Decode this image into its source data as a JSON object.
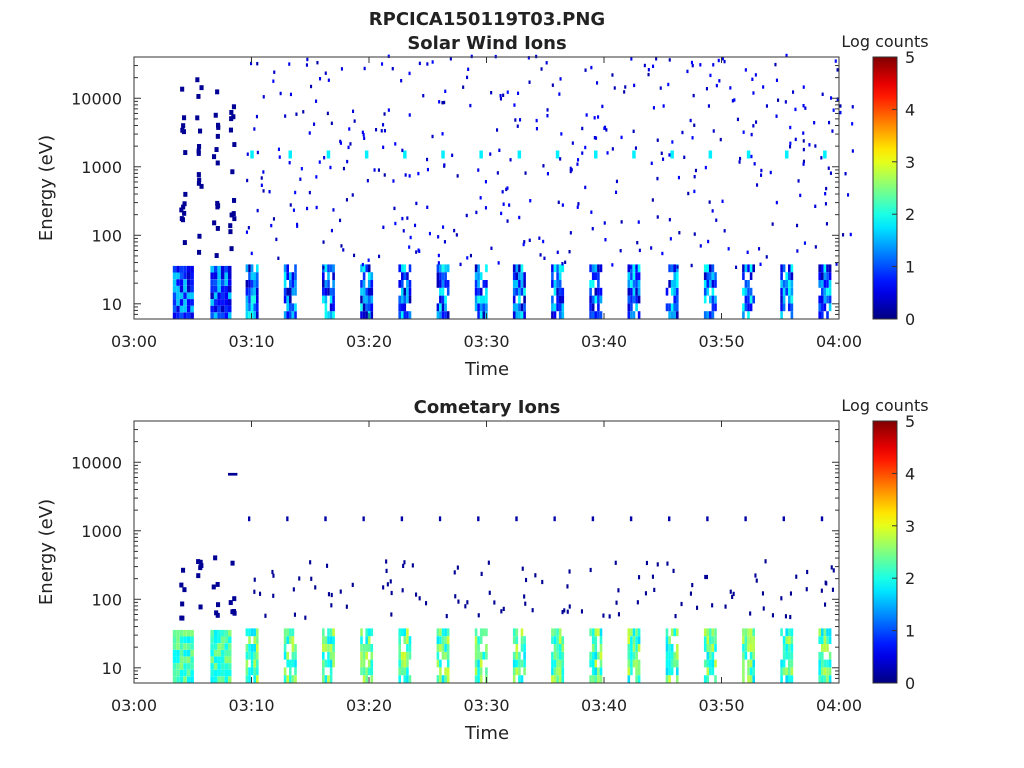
{
  "figure": {
    "title": "RPCICA150119T03.PNG"
  },
  "chart_data": [
    {
      "type": "heatmap",
      "title": "Solar Wind Ions",
      "xlabel": "Time",
      "ylabel": "Energy (eV)",
      "x_ticks": [
        "03:00",
        "03:10",
        "03:20",
        "03:30",
        "03:40",
        "03:50",
        "04:00"
      ],
      "x_range_minutes": [
        0,
        60
      ],
      "y_scale": "log",
      "y_ticks": [
        10,
        100,
        1000,
        10000
      ],
      "y_tick_labels": [
        "10",
        "100",
        "1000",
        "10000"
      ],
      "y_range": [
        6,
        40000
      ],
      "colorbar": {
        "label": "Log counts",
        "range": [
          0,
          5
        ],
        "ticks": [
          "0",
          "1",
          "2",
          "3",
          "4",
          "5"
        ],
        "colormap": "jet"
      },
      "features": {
        "low_energy_band_ev": [
          6,
          30
        ],
        "scan_period_min": 3.25,
        "scan_start_min": 9.5,
        "peak_energy_ev": 1500,
        "peak_log_counts": 1.8,
        "scattered_log_counts": 0.2
      }
    },
    {
      "type": "heatmap",
      "title": "Cometary Ions",
      "xlabel": "Time",
      "ylabel": "Energy (eV)",
      "x_ticks": [
        "03:00",
        "03:10",
        "03:20",
        "03:30",
        "03:40",
        "03:50",
        "04:00"
      ],
      "x_range_minutes": [
        0,
        60
      ],
      "y_scale": "log",
      "y_ticks": [
        10,
        100,
        1000,
        10000
      ],
      "y_tick_labels": [
        "10",
        "100",
        "1000",
        "10000"
      ],
      "y_range": [
        6,
        40000
      ],
      "colorbar": {
        "label": "Log counts",
        "range": [
          0,
          5
        ],
        "ticks": [
          "0",
          "1",
          "2",
          "3",
          "4",
          "5"
        ],
        "colormap": "jet"
      },
      "features": {
        "low_energy_band_ev": [
          6,
          30
        ],
        "band_log_counts": 2.3,
        "scan_period_min": 3.25,
        "scan_start_min": 9.5,
        "line_energy_ev": 1500,
        "scattered_range_ev": [
          50,
          350
        ]
      }
    }
  ]
}
